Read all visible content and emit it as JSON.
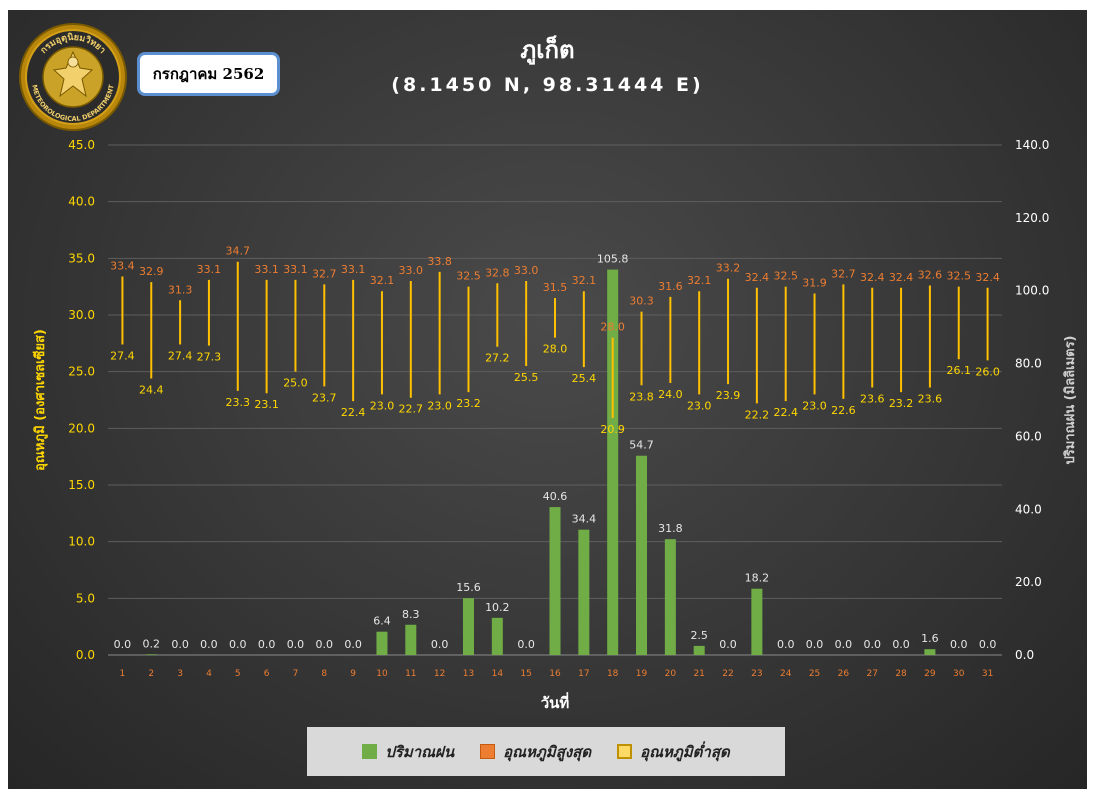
{
  "header": {
    "title": "ภูเก็ต",
    "coordinates": "(8.1450 N, 98.31444 E)",
    "month_label": "กรกฎาคม 2562",
    "logo_text": "กรมอุตุนิยมวิทยา METEOROLOGICAL DEPARTMENT"
  },
  "legend": {
    "rain": "ปริมาณฝน",
    "max": "อุณหภูมิสูงสุด",
    "min": "อุณหภูมิต่ำสุด"
  },
  "colors": {
    "rain": "#70ad47",
    "max_label": "#ed7d31",
    "min_label": "#ffd700",
    "bar_line": "#ffc000",
    "axis_left": "#ffd700",
    "axis_right": "#ffffff",
    "category": "#ed7d31"
  },
  "chart_data": {
    "type": "bar",
    "xlabel": "วันที่",
    "ylabel_left": "อุณหภูมิ (องศาเซลเซียส)",
    "ylabel_right": "ปริมาณฝน (มิลลิเมตร)",
    "ylim_left": [
      0,
      45
    ],
    "yticks_left": [
      "0.0",
      "5.0",
      "10.0",
      "15.0",
      "20.0",
      "25.0",
      "30.0",
      "35.0",
      "40.0",
      "45.0"
    ],
    "ylim_right": [
      0,
      140
    ],
    "yticks_right": [
      "0.0",
      "20.0",
      "40.0",
      "60.0",
      "80.0",
      "100.0",
      "120.0",
      "140.0"
    ],
    "grid": true,
    "legend_position": "bottom",
    "categories": [
      "1",
      "2",
      "3",
      "4",
      "5",
      "6",
      "7",
      "8",
      "9",
      "10",
      "11",
      "12",
      "13",
      "14",
      "15",
      "16",
      "17",
      "18",
      "19",
      "20",
      "21",
      "22",
      "23",
      "24",
      "25",
      "26",
      "27",
      "28",
      "29",
      "30",
      "31"
    ],
    "series": [
      {
        "name": "ปริมาณฝน",
        "axis": "right",
        "values": [
          0.0,
          0.2,
          0.0,
          0.0,
          0.0,
          0.0,
          0.0,
          0.0,
          0.0,
          6.4,
          8.3,
          0.0,
          15.6,
          10.2,
          0.0,
          40.6,
          34.4,
          105.8,
          54.7,
          31.8,
          2.5,
          0.0,
          18.2,
          0.0,
          0.0,
          0.0,
          0.0,
          0.0,
          1.6,
          0.0,
          0.0
        ]
      },
      {
        "name": "อุณหภูมิสูงสุด",
        "axis": "left",
        "values": [
          33.4,
          32.9,
          31.3,
          33.1,
          34.7,
          33.1,
          33.1,
          32.7,
          33.1,
          32.1,
          33.0,
          33.8,
          32.5,
          32.8,
          33.0,
          31.5,
          32.1,
          28.0,
          30.3,
          31.6,
          32.1,
          33.2,
          32.4,
          32.5,
          31.9,
          32.7,
          32.4,
          32.4,
          32.6,
          32.5,
          32.4
        ]
      },
      {
        "name": "อุณหภูมิต่ำสุด",
        "axis": "left",
        "values": [
          27.4,
          24.4,
          27.4,
          27.3,
          23.3,
          23.1,
          25.0,
          23.7,
          22.4,
          23.0,
          22.7,
          23.0,
          23.2,
          27.2,
          25.5,
          28.0,
          25.4,
          20.9,
          23.8,
          24.0,
          23.0,
          23.9,
          22.2,
          22.4,
          23.0,
          22.6,
          23.6,
          23.2,
          23.6,
          26.1,
          26.0
        ]
      }
    ]
  }
}
